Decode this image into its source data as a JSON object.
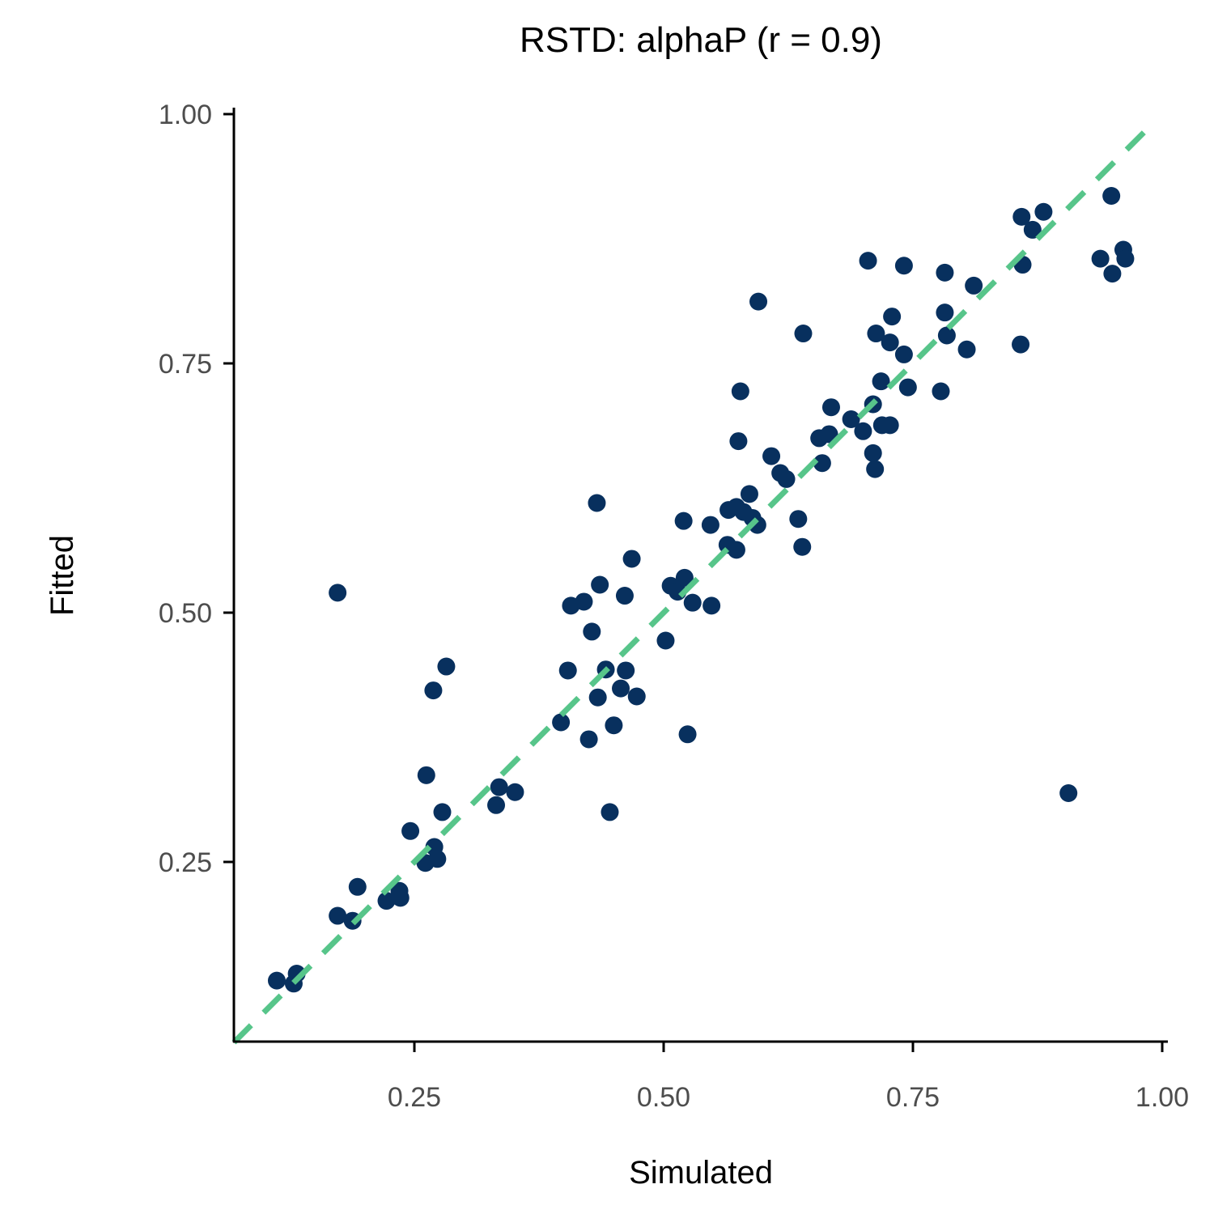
{
  "chart_data": {
    "type": "scatter",
    "title": "RSTD: alphaP (r = 0.9)",
    "xlabel": "Simulated",
    "ylabel": "Fitted",
    "xlim": [
      0.069,
      1.01
    ],
    "ylim": [
      0.07,
      1.01
    ],
    "xticks": [
      0.25,
      0.5,
      0.75,
      1.0
    ],
    "xtick_labels": [
      "0.25",
      "0.50",
      "0.75",
      "1.00"
    ],
    "yticks": [
      0.25,
      0.5,
      0.75,
      1.0
    ],
    "ytick_labels": [
      "0.25",
      "0.50",
      "0.75",
      "1.00"
    ],
    "grid": false,
    "point_color": "#08305e",
    "reference_line": {
      "type": "identity",
      "style": "dashed",
      "color": "#57c58a"
    },
    "points": [
      [
        0.112,
        0.131
      ],
      [
        0.129,
        0.128
      ],
      [
        0.132,
        0.138
      ],
      [
        0.173,
        0.52
      ],
      [
        0.173,
        0.196
      ],
      [
        0.188,
        0.191
      ],
      [
        0.193,
        0.225
      ],
      [
        0.222,
        0.211
      ],
      [
        0.235,
        0.221
      ],
      [
        0.236,
        0.214
      ],
      [
        0.246,
        0.281
      ],
      [
        0.262,
        0.337
      ],
      [
        0.261,
        0.249
      ],
      [
        0.27,
        0.265
      ],
      [
        0.273,
        0.253
      ],
      [
        0.269,
        0.422
      ],
      [
        0.282,
        0.446
      ],
      [
        0.278,
        0.3
      ],
      [
        0.332,
        0.307
      ],
      [
        0.335,
        0.325
      ],
      [
        0.351,
        0.32
      ],
      [
        0.397,
        0.39
      ],
      [
        0.404,
        0.442
      ],
      [
        0.407,
        0.507
      ],
      [
        0.42,
        0.511
      ],
      [
        0.425,
        0.373
      ],
      [
        0.428,
        0.481
      ],
      [
        0.433,
        0.61
      ],
      [
        0.436,
        0.528
      ],
      [
        0.434,
        0.415
      ],
      [
        0.442,
        0.443
      ],
      [
        0.446,
        0.3
      ],
      [
        0.45,
        0.387
      ],
      [
        0.457,
        0.424
      ],
      [
        0.462,
        0.442
      ],
      [
        0.461,
        0.517
      ],
      [
        0.473,
        0.416
      ],
      [
        0.468,
        0.554
      ],
      [
        0.502,
        0.472
      ],
      [
        0.507,
        0.527
      ],
      [
        0.514,
        0.521
      ],
      [
        0.521,
        0.535
      ],
      [
        0.52,
        0.592
      ],
      [
        0.524,
        0.378
      ],
      [
        0.529,
        0.51
      ],
      [
        0.548,
        0.507
      ],
      [
        0.547,
        0.588
      ],
      [
        0.564,
        0.568
      ],
      [
        0.565,
        0.603
      ],
      [
        0.573,
        0.606
      ],
      [
        0.573,
        0.563
      ],
      [
        0.58,
        0.601
      ],
      [
        0.575,
        0.672
      ],
      [
        0.577,
        0.722
      ],
      [
        0.586,
        0.619
      ],
      [
        0.589,
        0.595
      ],
      [
        0.594,
        0.588
      ],
      [
        0.595,
        0.812
      ],
      [
        0.608,
        0.657
      ],
      [
        0.617,
        0.64
      ],
      [
        0.623,
        0.634
      ],
      [
        0.635,
        0.594
      ],
      [
        0.639,
        0.566
      ],
      [
        0.64,
        0.78
      ],
      [
        0.656,
        0.675
      ],
      [
        0.659,
        0.65
      ],
      [
        0.666,
        0.679
      ],
      [
        0.668,
        0.706
      ],
      [
        0.688,
        0.694
      ],
      [
        0.7,
        0.682
      ],
      [
        0.705,
        0.853
      ],
      [
        0.71,
        0.709
      ],
      [
        0.71,
        0.66
      ],
      [
        0.712,
        0.644
      ],
      [
        0.713,
        0.78
      ],
      [
        0.718,
        0.732
      ],
      [
        0.719,
        0.688
      ],
      [
        0.727,
        0.688
      ],
      [
        0.727,
        0.771
      ],
      [
        0.729,
        0.797
      ],
      [
        0.741,
        0.759
      ],
      [
        0.741,
        0.848
      ],
      [
        0.745,
        0.726
      ],
      [
        0.778,
        0.722
      ],
      [
        0.782,
        0.841
      ],
      [
        0.782,
        0.801
      ],
      [
        0.784,
        0.778
      ],
      [
        0.804,
        0.764
      ],
      [
        0.811,
        0.828
      ],
      [
        0.858,
        0.769
      ],
      [
        0.859,
        0.897
      ],
      [
        0.86,
        0.849
      ],
      [
        0.87,
        0.884
      ],
      [
        0.881,
        0.902
      ],
      [
        0.906,
        0.319
      ],
      [
        0.938,
        0.855
      ],
      [
        0.949,
        0.918
      ],
      [
        0.95,
        0.84
      ],
      [
        0.961,
        0.864
      ],
      [
        0.963,
        0.855
      ]
    ]
  }
}
